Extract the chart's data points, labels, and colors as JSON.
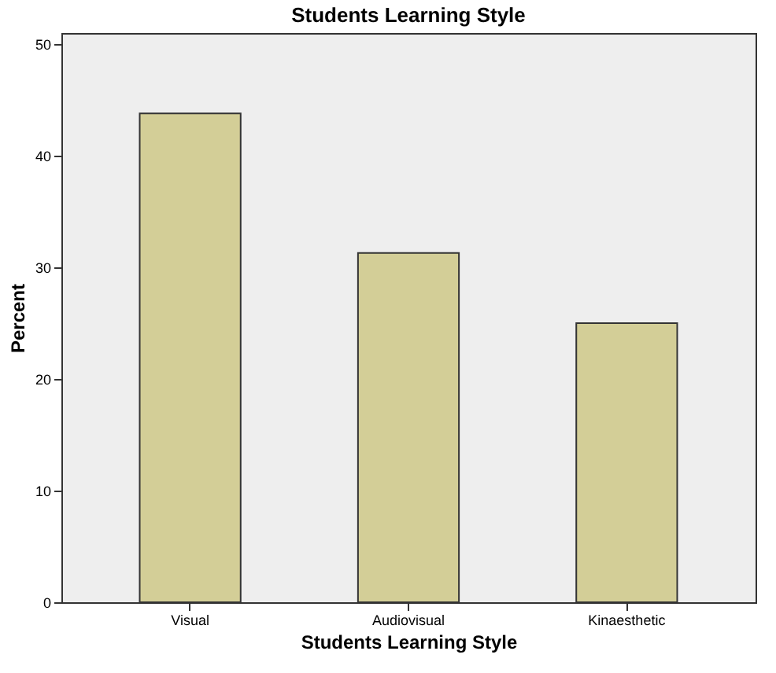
{
  "chart_data": {
    "type": "bar",
    "title": "Students Learning Style",
    "xlabel": "Students Learning Style",
    "ylabel": "Percent",
    "categories": [
      "Visual",
      "Audiovisual",
      "Kinaesthetic"
    ],
    "values": [
      43.8,
      31.3,
      25
    ],
    "color": "#d3ce97",
    "ylim": [
      0,
      51
    ],
    "yticks": [
      0,
      10,
      20,
      30,
      40,
      50
    ],
    "grid": false
  }
}
